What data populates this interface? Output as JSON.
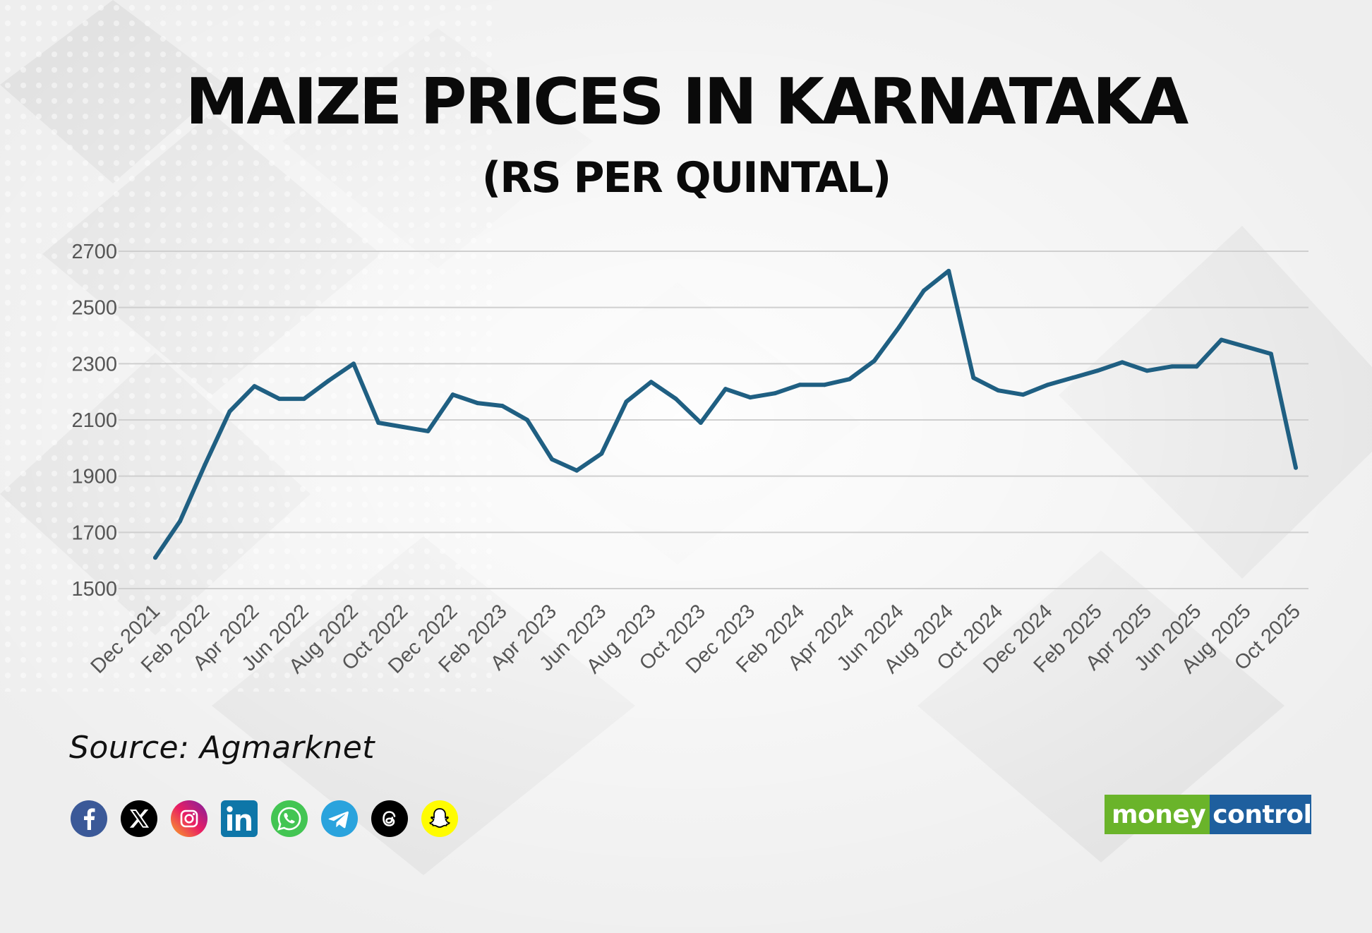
{
  "title": "MAIZE PRICES IN KARNATAKA",
  "subtitle": "(RS PER QUINTAL)",
  "source": "Source: Agmarknet",
  "brand": {
    "part1": "money",
    "part2": "control",
    "color1": "#6ab42a",
    "color2": "#1e5f9e"
  },
  "social_icons": [
    "facebook-icon",
    "x-icon",
    "instagram-icon",
    "linkedin-icon",
    "whatsapp-icon",
    "telegram-icon",
    "threads-icon",
    "snapchat-icon"
  ],
  "chart_data": {
    "type": "line",
    "title": "MAIZE PRICES IN KARNATAKA",
    "subtitle": "(RS PER QUINTAL)",
    "xlabel": "",
    "ylabel": "",
    "ylim": [
      1500,
      2700
    ],
    "yticks": [
      1500,
      1700,
      1900,
      2100,
      2300,
      2500,
      2700
    ],
    "grid": true,
    "line_color": "#1f5f82",
    "x": [
      "Dec 2021",
      "Jan 2022",
      "Feb 2022",
      "Mar 2022",
      "Apr 2022",
      "May 2022",
      "Jun 2022",
      "Jul 2022",
      "Aug 2022",
      "Sep 2022",
      "Oct 2022",
      "Nov 2022",
      "Dec 2022",
      "Jan 2023",
      "Feb 2023",
      "Mar 2023",
      "Apr 2023",
      "May 2023",
      "Jun 2023",
      "Jul 2023",
      "Aug 2023",
      "Sep 2023",
      "Oct 2023",
      "Nov 2023",
      "Dec 2023",
      "Jan 2024",
      "Feb 2024",
      "Mar 2024",
      "Apr 2024",
      "May 2024",
      "Jun 2024",
      "Jul 2024",
      "Aug 2024",
      "Sep 2024",
      "Oct 2024",
      "Nov 2024",
      "Dec 2024",
      "Jan 2025",
      "Feb 2025",
      "Mar 2025",
      "Apr 2025",
      "May 2025",
      "Jun 2025",
      "Jul 2025",
      "Aug 2025",
      "Sep 2025",
      "Oct 2025"
    ],
    "tick_labels": [
      "Dec 2021",
      "Feb 2022",
      "Apr 2022",
      "Jun 2022",
      "Aug 2022",
      "Oct 2022",
      "Dec 2022",
      "Feb 2023",
      "Apr 2023",
      "Jun 2023",
      "Aug 2023",
      "Oct 2023",
      "Dec 2023",
      "Feb 2024",
      "Apr 2024",
      "Jun 2024",
      "Aug 2024",
      "Oct 2024",
      "Dec 2024",
      "Feb 2025",
      "Apr 2025",
      "Jun 2025",
      "Aug 2025",
      "Oct 2025"
    ],
    "series": [
      {
        "values": [
          1610,
          1740,
          1940,
          2130,
          2220,
          2175,
          2175,
          2240,
          2300,
          2090,
          2075,
          2060,
          2190,
          2160,
          2150,
          2100,
          1960,
          1920,
          1980,
          2165,
          2235,
          2175,
          2090,
          2210,
          2180,
          2195,
          2225,
          2225,
          2245,
          2310,
          2430,
          2560,
          2630,
          2250,
          2205,
          2190,
          2225,
          2250,
          2275,
          2305,
          2275,
          2290,
          2290,
          2385,
          2360,
          2335,
          1930
        ]
      }
    ]
  }
}
